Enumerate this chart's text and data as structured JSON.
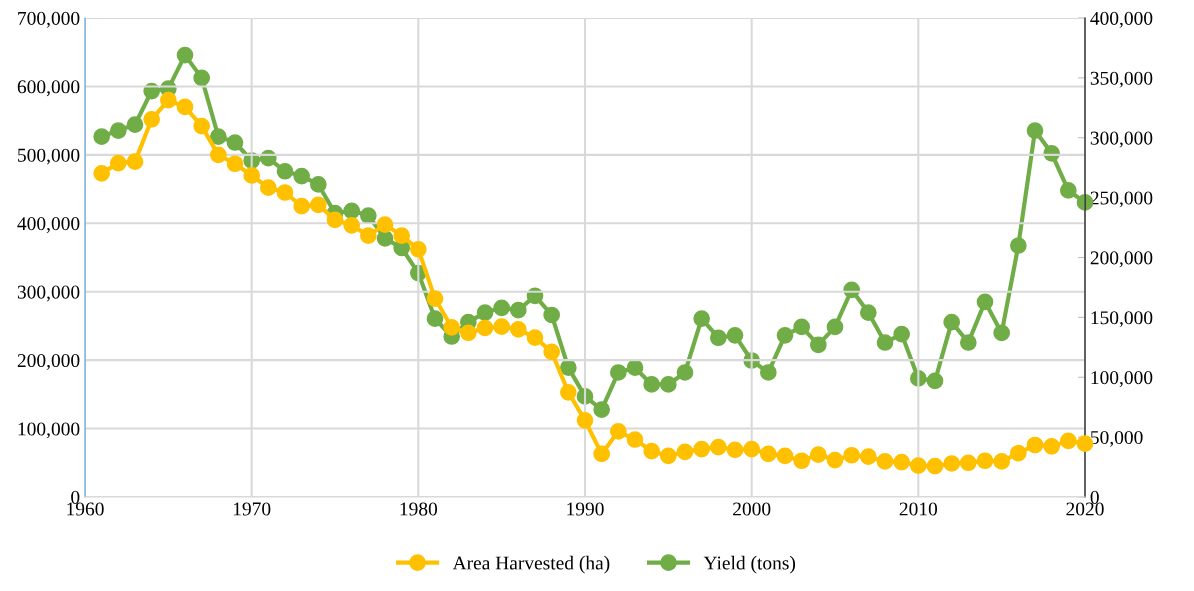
{
  "chart_data": {
    "type": "line",
    "x": [
      1961,
      1962,
      1963,
      1964,
      1965,
      1966,
      1967,
      1968,
      1969,
      1970,
      1971,
      1972,
      1973,
      1974,
      1975,
      1976,
      1977,
      1978,
      1979,
      1980,
      1981,
      1982,
      1983,
      1984,
      1985,
      1986,
      1987,
      1988,
      1989,
      1990,
      1991,
      1992,
      1993,
      1994,
      1995,
      1996,
      1997,
      1998,
      1999,
      2000,
      2001,
      2002,
      2003,
      2004,
      2005,
      2006,
      2007,
      2008,
      2009,
      2010,
      2011,
      2012,
      2013,
      2014,
      2015,
      2016,
      2017,
      2018,
      2019,
      2020
    ],
    "series": [
      {
        "name": "Area Harvested (ha)",
        "color": "#ffc000",
        "values": [
          473000,
          488000,
          490000,
          552000,
          580000,
          570000,
          542000,
          500000,
          487000,
          470000,
          452000,
          445000,
          425000,
          427000,
          405000,
          397000,
          382000,
          398000,
          382000,
          362000,
          290000,
          248000,
          240000,
          247000,
          249000,
          245000,
          233000,
          212000,
          153000,
          112000,
          63000,
          96000,
          84000,
          67000,
          60000,
          66000,
          70000,
          73000,
          69000,
          70000,
          63000,
          60000,
          53000,
          62000,
          54000,
          61000,
          59000,
          52000,
          51000,
          46000,
          45000,
          49000,
          50000,
          53000,
          52000,
          64000,
          76000,
          74000,
          82000,
          78000
        ]
      },
      {
        "name": "Yield (tons)",
        "color": "#70ad47",
        "axis": "y2",
        "values": [
          301000,
          306000,
          311000,
          339000,
          341000,
          369000,
          350000,
          301000,
          296000,
          281000,
          283000,
          272000,
          268000,
          261000,
          237000,
          239000,
          235000,
          216000,
          208000,
          187000,
          149000,
          134000,
          146000,
          154000,
          158000,
          156000,
          168000,
          152000,
          108000,
          84000,
          73000,
          104000,
          108000,
          94000,
          94000,
          104000,
          149000,
          133000,
          135000,
          114000,
          104000,
          135000,
          142000,
          127000,
          142000,
          173000,
          154000,
          129000,
          136000,
          99000,
          97000,
          146000,
          129000,
          163000,
          137000,
          210000,
          306000,
          287000,
          256000,
          246000
        ]
      }
    ],
    "xlim": [
      1960,
      2020
    ],
    "xticks": [
      1960,
      1970,
      1980,
      1990,
      2000,
      2010,
      2020
    ],
    "ylim": [
      0,
      700000
    ],
    "yticks": [
      {
        "value": 0,
        "label": "0"
      },
      {
        "value": 100000,
        "label": "100,000"
      },
      {
        "value": 200000,
        "label": "200,000"
      },
      {
        "value": 300000,
        "label": "300,000"
      },
      {
        "value": 400000,
        "label": "400,000"
      },
      {
        "value": 500000,
        "label": "500,000"
      },
      {
        "value": 600000,
        "label": "600,000"
      },
      {
        "value": 700000,
        "label": "700,000"
      }
    ],
    "y2lim": [
      0,
      400000
    ],
    "y2ticks": [
      {
        "value": 0,
        "label": "0"
      },
      {
        "value": 50000,
        "label": "50,000"
      },
      {
        "value": 100000,
        "label": "100,000"
      },
      {
        "value": 150000,
        "label": "150,000"
      },
      {
        "value": 200000,
        "label": "200,000"
      },
      {
        "value": 250000,
        "label": "250,000"
      },
      {
        "value": 300000,
        "label": "300,000"
      },
      {
        "value": 350000,
        "label": "350,000"
      },
      {
        "value": 400000,
        "label": "400,000"
      }
    ],
    "grid": true,
    "legend": "bottom",
    "marker": "circle",
    "line_style": "solid"
  }
}
